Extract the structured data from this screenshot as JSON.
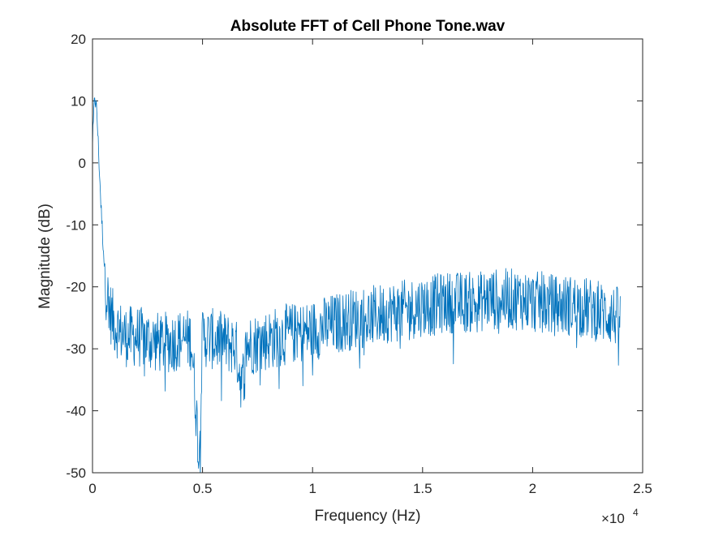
{
  "chart_data": {
    "type": "line",
    "title": "Absolute FFT of Cell Phone Tone.wav",
    "xlabel": "Frequency (Hz)",
    "ylabel": "Magnitude (dB)",
    "x_exponent_label": {
      "base": "×10",
      "exp": "4"
    },
    "xlim": [
      0,
      25000
    ],
    "ylim": [
      -50,
      20
    ],
    "xticks": [
      0,
      5000,
      10000,
      15000,
      20000,
      25000
    ],
    "xtick_labels": [
      "0",
      "0.5",
      "1",
      "1.5",
      "2",
      "2.5"
    ],
    "yticks": [
      20,
      10,
      0,
      -10,
      -20,
      -30,
      -40,
      -50
    ],
    "ytick_labels": [
      "20",
      "10",
      "0",
      "-10",
      "-20",
      "-30",
      "-40",
      "-50"
    ],
    "grid": false,
    "line_color": "#0072BD",
    "series": [
      {
        "x": [
          0,
          100,
          200,
          300,
          400,
          500,
          600,
          800,
          1000,
          1200,
          1500,
          2000,
          2500,
          3000,
          3500,
          4000,
          4500,
          4850,
          5000,
          5500,
          6000,
          6500,
          6800,
          7000,
          7500,
          8000,
          8500,
          9000,
          9500,
          10000,
          10500,
          11000,
          11500,
          12000,
          12500,
          13000,
          13500,
          14000,
          14500,
          15000,
          15500,
          16000,
          16500,
          17000,
          17500,
          18000,
          18500,
          19000,
          19500,
          20000,
          20500,
          21000,
          21500,
          22000,
          22500,
          23000,
          23500,
          24000
        ],
        "y": [
          3,
          11,
          8,
          0,
          -8,
          -14,
          -20,
          -24,
          -26,
          -27,
          -28,
          -28,
          -28.5,
          -29,
          -29,
          -28.5,
          -28.5,
          -47.5,
          -28,
          -28.5,
          -29,
          -29.5,
          -36,
          -29.5,
          -29,
          -28.5,
          -28,
          -27.5,
          -27.5,
          -27,
          -26.5,
          -26,
          -25.5,
          -25,
          -25,
          -24.5,
          -24,
          -24,
          -23.5,
          -23,
          -23,
          -22.5,
          -22.5,
          -22.5,
          -22.5,
          -22,
          -22,
          -22,
          -22,
          -22.5,
          -22.5,
          -23,
          -23,
          -23,
          -23.5,
          -24,
          -24.5,
          -25
        ]
      }
    ]
  }
}
